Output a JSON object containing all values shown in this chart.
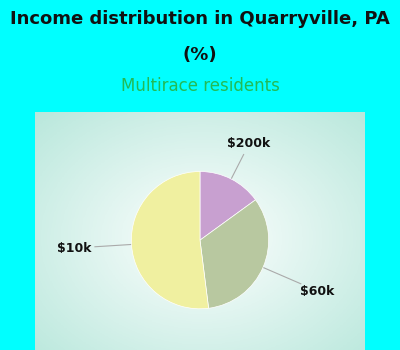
{
  "title_line1": "Income distribution in Quarryville, PA",
  "title_line2": "(%)",
  "subtitle": "Multirace residents",
  "slices": [
    {
      "label": "$200k",
      "value": 15,
      "color": "#c8a0d0"
    },
    {
      "label": "$60k",
      "value": 33,
      "color": "#b8c8a0"
    },
    {
      "label": "$10k",
      "value": 52,
      "color": "#f0f0a0"
    }
  ],
  "title_fontsize": 13,
  "subtitle_fontsize": 12,
  "subtitle_color": "#22bb55",
  "title_color": "#111111",
  "background_color": "#00ffff",
  "label_fontsize": 9,
  "label_color": "#111111",
  "startangle": 90
}
